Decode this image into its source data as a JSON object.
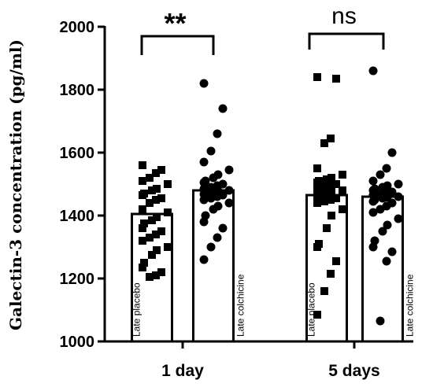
{
  "chart_data": {
    "type": "bar",
    "ylabel": "Galectin-3 concentration (pg/ml)",
    "ylim": [
      1000,
      2000
    ],
    "yticks": [
      1000,
      1200,
      1400,
      1600,
      1800,
      2000
    ],
    "grid": false,
    "groups": [
      "1 day",
      "5 days"
    ],
    "bars": [
      {
        "label": "Late placebo",
        "group": 0,
        "value": 1405,
        "marker": "square",
        "points": [
          1560,
          1545,
          1535,
          1520,
          1510,
          1500,
          1485,
          1480,
          1470,
          1465,
          1455,
          1450,
          1440,
          1420,
          1410,
          1395,
          1385,
          1375,
          1360,
          1350,
          1340,
          1330,
          1320,
          1300,
          1290,
          1275,
          1250,
          1235,
          1220,
          1210,
          1205
        ]
      },
      {
        "label": "Late colchicine",
        "group": 0,
        "value": 1480,
        "marker": "circle",
        "points": [
          1820,
          1740,
          1660,
          1605,
          1570,
          1545,
          1530,
          1520,
          1510,
          1505,
          1500,
          1495,
          1490,
          1485,
          1480,
          1478,
          1475,
          1470,
          1468,
          1465,
          1460,
          1455,
          1450,
          1440,
          1430,
          1420,
          1400,
          1380,
          1360,
          1330,
          1300,
          1260
        ]
      },
      {
        "label": "Late placebo",
        "group": 1,
        "value": 1465,
        "marker": "square",
        "points": [
          1840,
          1835,
          1645,
          1630,
          1550,
          1530,
          1520,
          1515,
          1510,
          1505,
          1500,
          1495,
          1490,
          1485,
          1480,
          1475,
          1470,
          1465,
          1460,
          1455,
          1450,
          1445,
          1440,
          1420,
          1400,
          1360,
          1310,
          1300,
          1255,
          1215,
          1160,
          1085
        ]
      },
      {
        "label": "Late colchicine",
        "group": 1,
        "value": 1460,
        "marker": "circle",
        "points": [
          1860,
          1600,
          1550,
          1530,
          1510,
          1500,
          1495,
          1490,
          1485,
          1480,
          1475,
          1470,
          1468,
          1465,
          1460,
          1458,
          1455,
          1450,
          1445,
          1440,
          1430,
          1420,
          1410,
          1390,
          1370,
          1350,
          1320,
          1300,
          1285,
          1255,
          1065
        ]
      }
    ],
    "significance": [
      {
        "text": "**",
        "group": 0
      },
      {
        "text": "ns",
        "group": 1
      }
    ]
  }
}
